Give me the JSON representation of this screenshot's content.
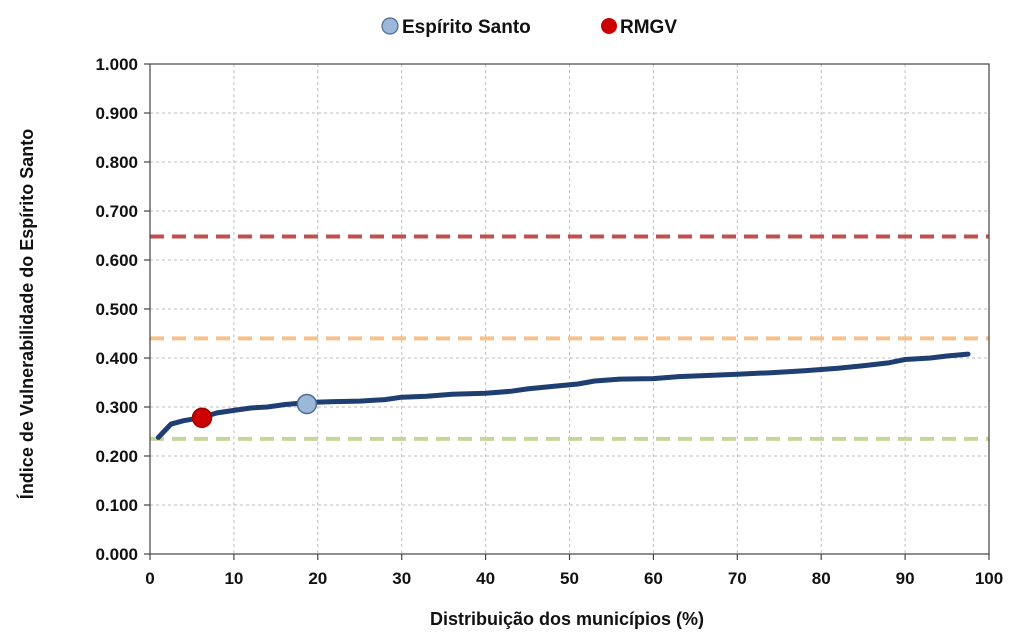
{
  "chart_data": {
    "type": "line",
    "xlabel": "Distribuição dos municípios (%)",
    "ylabel": "Índice de Vulnerabilidade do Espírito Santo",
    "xlim": [
      0,
      100
    ],
    "ylim": [
      0.0,
      1.0
    ],
    "x_ticks": [
      "0",
      "10",
      "20",
      "30",
      "40",
      "50",
      "60",
      "70",
      "80",
      "90",
      "100"
    ],
    "y_ticks": [
      "0.000",
      "0.100",
      "0.200",
      "0.300",
      "0.400",
      "0.500",
      "0.600",
      "0.700",
      "0.800",
      "0.900",
      "1.000"
    ],
    "grid": true,
    "legend_position": "top-center",
    "legend": [
      {
        "label": "Espírito Santo",
        "color": "#9bb8d9",
        "marker": "circle"
      },
      {
        "label": "RMGV",
        "color": "#cc0000",
        "marker": "circle"
      }
    ],
    "curve": {
      "color": "#1f3f73",
      "x": [
        1.0,
        2.5,
        4.0,
        6.0,
        8.0,
        10.0,
        12.0,
        14.0,
        16.0,
        18.0,
        20.0,
        22.0,
        25.0,
        28.0,
        30.0,
        33.0,
        36.0,
        40.0,
        43.0,
        45.0,
        48.0,
        51.0,
        53.0,
        56.0,
        60.0,
        63.0,
        66.0,
        70.0,
        74.0,
        78.0,
        82.0,
        85.0,
        88.0,
        90.0,
        93.0,
        95.0,
        97.5
      ],
      "y": [
        0.238,
        0.265,
        0.272,
        0.278,
        0.288,
        0.293,
        0.298,
        0.3,
        0.305,
        0.308,
        0.31,
        0.311,
        0.312,
        0.315,
        0.32,
        0.322,
        0.326,
        0.328,
        0.332,
        0.337,
        0.342,
        0.347,
        0.353,
        0.357,
        0.358,
        0.362,
        0.364,
        0.367,
        0.37,
        0.374,
        0.379,
        0.384,
        0.39,
        0.397,
        0.4,
        0.404,
        0.408
      ]
    },
    "reference_lines": [
      {
        "y": 0.648,
        "color": "#c0504d"
      },
      {
        "y": 0.44,
        "color": "#f8c08a"
      },
      {
        "y": 0.235,
        "color": "#c3d69b"
      }
    ],
    "points": [
      {
        "name": "Espírito Santo",
        "x": 18.7,
        "y": 0.306,
        "color": "#9bb8d9"
      },
      {
        "name": "RMGV",
        "x": 6.2,
        "y": 0.278,
        "color": "#cc0000"
      }
    ]
  }
}
